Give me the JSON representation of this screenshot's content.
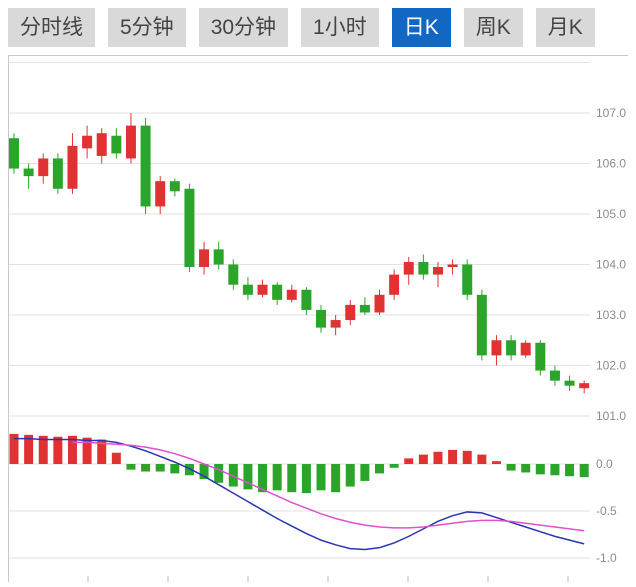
{
  "toolbar": {
    "tabs": [
      {
        "label": "分时线",
        "active": false
      },
      {
        "label": "5分钟",
        "active": false
      },
      {
        "label": "30分钟",
        "active": false
      },
      {
        "label": "1小时",
        "active": false
      },
      {
        "label": "日K",
        "active": true
      },
      {
        "label": "周K",
        "active": false
      },
      {
        "label": "月K",
        "active": false
      }
    ]
  },
  "colors": {
    "up_candle": "#e03232",
    "down_candle": "#2aa42a",
    "dif_line": "#2b35af",
    "dea_line": "#e050d0",
    "active_tab_bg": "#1266c4",
    "active_tab_text": "#ffffff",
    "tab_bg": "#d9d9d9",
    "tab_text": "#444444",
    "grid_line": "#e2e2e2",
    "border_line": "#c9c9c9",
    "axis_text": "#8c8c8c"
  },
  "chart_data": {
    "type": "candlestick",
    "subtype": "daily_k_with_macd",
    "title": "",
    "legend_position": "none",
    "grid": true,
    "price_axis": {
      "labels": [
        "107.0",
        "106.0",
        "105.0",
        "104.0",
        "103.0",
        "102.0",
        "101.0"
      ],
      "values": [
        107,
        106,
        105,
        104,
        103,
        102,
        101
      ],
      "grid_values": [
        108,
        107,
        106,
        105,
        104,
        103,
        102,
        101
      ],
      "range": [
        100.8,
        108.2
      ]
    },
    "indicator_axis": {
      "labels": [
        "0.0",
        "-0.5",
        "-1.0"
      ],
      "values": [
        0,
        -0.5,
        -1.0
      ],
      "range": [
        -1.25,
        0.45
      ]
    },
    "candle_format": "[open, high, low, close]",
    "candles": [
      [
        106.5,
        106.6,
        105.8,
        105.9
      ],
      [
        105.9,
        106.0,
        105.5,
        105.75
      ],
      [
        105.75,
        106.2,
        105.6,
        106.1
      ],
      [
        106.1,
        106.2,
        105.4,
        105.5
      ],
      [
        105.5,
        106.6,
        105.4,
        106.35
      ],
      [
        106.3,
        106.75,
        106.1,
        106.55
      ],
      [
        106.15,
        106.7,
        106.0,
        106.6
      ],
      [
        106.55,
        106.7,
        106.1,
        106.2
      ],
      [
        106.1,
        107.0,
        106.0,
        106.75
      ],
      [
        106.75,
        106.9,
        105.0,
        105.15
      ],
      [
        105.15,
        105.75,
        105.0,
        105.65
      ],
      [
        105.65,
        105.7,
        105.35,
        105.45
      ],
      [
        105.5,
        105.6,
        103.85,
        103.95
      ],
      [
        103.95,
        104.45,
        103.8,
        104.3
      ],
      [
        104.3,
        104.45,
        103.9,
        104.0
      ],
      [
        104.0,
        104.1,
        103.5,
        103.6
      ],
      [
        103.6,
        103.75,
        103.3,
        103.4
      ],
      [
        103.4,
        103.7,
        103.35,
        103.6
      ],
      [
        103.6,
        103.65,
        103.2,
        103.3
      ],
      [
        103.3,
        103.6,
        103.25,
        103.5
      ],
      [
        103.5,
        103.55,
        103.0,
        103.1
      ],
      [
        103.1,
        103.2,
        102.65,
        102.75
      ],
      [
        102.75,
        103.0,
        102.6,
        102.9
      ],
      [
        102.9,
        103.3,
        102.8,
        103.2
      ],
      [
        103.2,
        103.35,
        103.0,
        103.05
      ],
      [
        103.05,
        103.5,
        103.0,
        103.4
      ],
      [
        103.4,
        103.9,
        103.3,
        103.8
      ],
      [
        103.8,
        104.15,
        103.6,
        104.05
      ],
      [
        104.05,
        104.2,
        103.7,
        103.8
      ],
      [
        103.8,
        104.05,
        103.55,
        103.95
      ],
      [
        103.95,
        104.1,
        103.8,
        104.0
      ],
      [
        104.0,
        104.1,
        103.3,
        103.4
      ],
      [
        103.4,
        103.5,
        102.1,
        102.2
      ],
      [
        102.2,
        102.6,
        102.0,
        102.5
      ],
      [
        102.5,
        102.6,
        102.1,
        102.2
      ],
      [
        102.2,
        102.5,
        102.15,
        102.45
      ],
      [
        102.45,
        102.5,
        101.8,
        101.9
      ],
      [
        101.9,
        102.0,
        101.6,
        101.7
      ],
      [
        101.7,
        101.8,
        101.5,
        101.6
      ],
      [
        101.55,
        101.7,
        101.45,
        101.65
      ]
    ],
    "macd": {
      "histogram": [
        0.32,
        0.31,
        0.3,
        0.29,
        0.3,
        0.28,
        0.26,
        0.12,
        -0.06,
        -0.08,
        -0.08,
        -0.1,
        -0.12,
        -0.16,
        -0.2,
        -0.24,
        -0.27,
        -0.3,
        -0.28,
        -0.3,
        -0.31,
        -0.28,
        -0.3,
        -0.24,
        -0.18,
        -0.1,
        -0.04,
        0.06,
        0.1,
        0.13,
        0.15,
        0.14,
        0.1,
        0.03,
        -0.07,
        -0.09,
        -0.11,
        -0.12,
        -0.13,
        -0.14
      ],
      "dif": [
        0.27,
        0.27,
        0.26,
        0.26,
        0.26,
        0.25,
        0.25,
        0.23,
        0.19,
        0.14,
        0.08,
        0.02,
        -0.05,
        -0.13,
        -0.22,
        -0.31,
        -0.4,
        -0.49,
        -0.58,
        -0.66,
        -0.74,
        -0.81,
        -0.86,
        -0.9,
        -0.91,
        -0.89,
        -0.84,
        -0.77,
        -0.69,
        -0.61,
        -0.55,
        -0.51,
        -0.52,
        -0.57,
        -0.62,
        -0.67,
        -0.72,
        -0.77,
        -0.81,
        -0.85
      ],
      "dea": [
        null,
        null,
        null,
        null,
        0.23,
        0.23,
        0.22,
        0.21,
        0.2,
        0.18,
        0.15,
        0.11,
        0.06,
        0.0,
        -0.06,
        -0.13,
        -0.2,
        -0.27,
        -0.34,
        -0.41,
        -0.47,
        -0.53,
        -0.58,
        -0.62,
        -0.65,
        -0.67,
        -0.68,
        -0.68,
        -0.67,
        -0.65,
        -0.63,
        -0.61,
        -0.6,
        -0.6,
        -0.61,
        -0.63,
        -0.65,
        -0.67,
        -0.69,
        -0.71
      ]
    }
  }
}
